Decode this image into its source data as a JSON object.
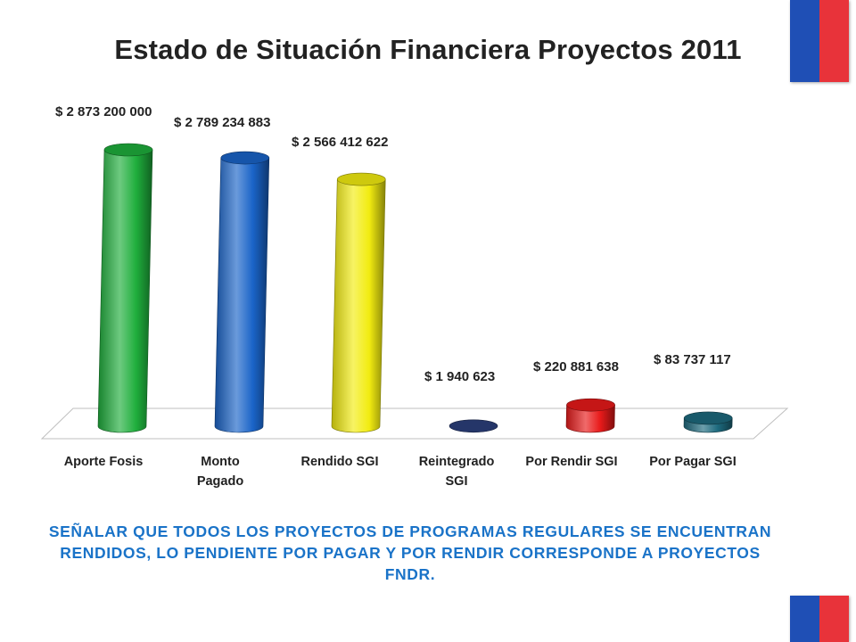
{
  "title": "Estado de Situación Financiera Proyectos 2011",
  "note": "SEÑALAR QUE TODOS LOS PROYECTOS DE PROGRAMAS REGULARES SE ENCUENTRAN RENDIDOS, LO PENDIENTE POR PAGAR Y POR RENDIR CORRESPONDE A PROYECTOS FNDR.",
  "colors": {
    "flag_blue": "#1f4fb5",
    "flag_red": "#e8333a",
    "note_text": "#1a73c8"
  },
  "chart_data": {
    "type": "bar",
    "style": "3d-cylinder",
    "title": "Estado de Situación Financiera Proyectos 2011",
    "categories": [
      [
        "Aporte Fosis"
      ],
      [
        "Monto",
        "Pagado"
      ],
      [
        "Rendido SGI"
      ],
      [
        "Reintegrado",
        "SGI"
      ],
      [
        "Por Rendir SGI"
      ],
      [
        "Por Pagar SGI"
      ]
    ],
    "values": [
      2873200000,
      2789234883,
      2566412622,
      1940623,
      220881638,
      83737117
    ],
    "data_labels": [
      "$ 2 873 200 000",
      "$ 2 789 234 883",
      "$ 2 566 412 622",
      "$ 1 940 623",
      "$ 220 881 638",
      "$ 83 737 117"
    ],
    "colors": [
      "#1fae3c",
      "#1a64c8",
      "#f2ec10",
      "#2b3f7c",
      "#e81a1a",
      "#1d6a7e"
    ],
    "ylim": [
      0,
      2873200000
    ],
    "grid": false,
    "legend": "none"
  }
}
